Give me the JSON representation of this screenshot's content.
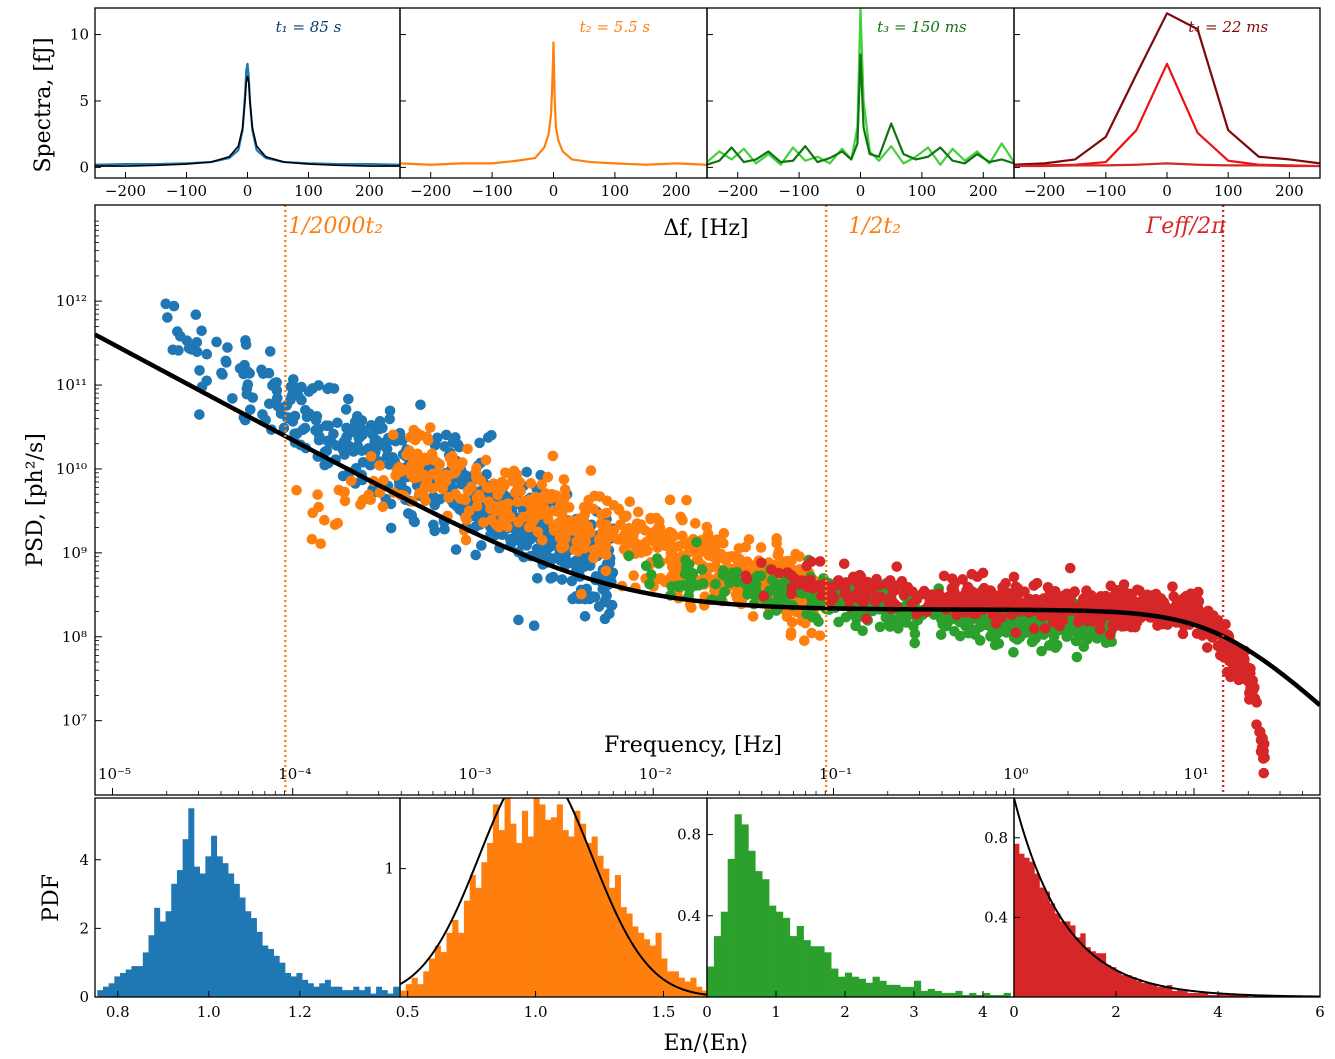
{
  "colors": {
    "blue": "#1f77b4",
    "orange": "#ff7f0e",
    "green": "#2ca02c",
    "red": "#d62728",
    "dark_blue": "#0a3a6b",
    "light_green": "#44cf3c",
    "dark_green": "#107510",
    "dark_red": "#7d0a0a",
    "bright_red": "#ee1111",
    "fit": "#000000"
  },
  "labels": {
    "spectra_ylabel": "Spectra,  [fJ]",
    "df_xlabel": "Δf,  [Hz]",
    "psd_ylabel": "PSD,  [ph²/s]",
    "freq_xlabel": "Frequency,  [Hz]",
    "pdf_ylabel": "PDF",
    "energy_xlabel": "En/⟨En⟩",
    "vline1": "1/2000t₂",
    "vline2": "1/2t₂",
    "vline3": "Γeff/2π"
  },
  "chart_data": [
    {
      "type": "line",
      "panel": "spectrum-1",
      "title": "t₁ = 85 s",
      "x": [
        -250,
        -200,
        -150,
        -100,
        -60,
        -30,
        -15,
        -8,
        -4,
        -2,
        0,
        2,
        4,
        8,
        15,
        30,
        60,
        100,
        150,
        200,
        250
      ],
      "series": [
        {
          "values": [
            0.2,
            0.25,
            0.25,
            0.3,
            0.4,
            0.7,
            1.3,
            2.8,
            5.5,
            7.3,
            7.8,
            6.8,
            5.0,
            2.8,
            1.3,
            0.7,
            0.4,
            0.3,
            0.25,
            0.25,
            0.2
          ]
        }
      ],
      "fit": [
        0.1,
        0.1,
        0.15,
        0.25,
        0.4,
        0.8,
        1.6,
        3.0,
        5.0,
        6.4,
        6.9,
        6.4,
        5.0,
        3.0,
        1.6,
        0.8,
        0.4,
        0.25,
        0.15,
        0.1,
        0.1
      ],
      "xlim": [
        -250,
        250
      ],
      "ylim": [
        -0.8,
        12
      ],
      "xticks": [
        -200,
        -100,
        0,
        100,
        200
      ],
      "yticks": [
        0,
        5,
        10
      ]
    },
    {
      "type": "line",
      "panel": "spectrum-2",
      "title": "t₂ = 5.5 s",
      "x": [
        -250,
        -200,
        -150,
        -100,
        -60,
        -30,
        -15,
        -8,
        -4,
        -2,
        0,
        2,
        4,
        8,
        15,
        30,
        60,
        100,
        150,
        200,
        250
      ],
      "series": [
        {
          "values": [
            0.3,
            0.2,
            0.3,
            0.3,
            0.5,
            0.7,
            1.5,
            2.5,
            4.0,
            6.2,
            9.4,
            5.0,
            3.0,
            2.0,
            1.2,
            0.6,
            0.4,
            0.3,
            0.2,
            0.3,
            0.2
          ]
        }
      ],
      "xlim": [
        -250,
        250
      ],
      "ylim": [
        -0.8,
        12
      ],
      "xticks": [
        -200,
        -100,
        0,
        100,
        200
      ],
      "yticks": [
        0,
        5,
        10
      ]
    },
    {
      "type": "line",
      "panel": "spectrum-3",
      "title": "t₃ = 150 ms",
      "x": [
        -250,
        -230,
        -210,
        -190,
        -170,
        -150,
        -130,
        -110,
        -90,
        -70,
        -50,
        -30,
        -15,
        -5,
        0,
        5,
        15,
        30,
        50,
        70,
        90,
        110,
        130,
        150,
        170,
        190,
        210,
        230,
        250
      ],
      "series": [
        {
          "values": [
            0.4,
            1.2,
            0.6,
            1.4,
            0.3,
            1.0,
            0.2,
            1.5,
            0.5,
            0.8,
            0.3,
            1.4,
            0.6,
            3.0,
            12.0,
            5.0,
            1.2,
            0.5,
            1.6,
            0.3,
            0.8,
            1.5,
            0.2,
            1.4,
            0.5,
            1.2,
            0.3,
            1.8,
            0.4
          ]
        },
        {
          "values": [
            0.2,
            0.5,
            1.5,
            0.4,
            0.6,
            1.2,
            0.4,
            0.5,
            1.6,
            0.4,
            0.7,
            1.2,
            0.6,
            1.8,
            8.5,
            3.0,
            1.0,
            0.8,
            3.3,
            1.0,
            0.6,
            0.8,
            1.5,
            0.5,
            0.3,
            1.0,
            0.4,
            0.6,
            0.3
          ]
        }
      ],
      "xlim": [
        -250,
        250
      ],
      "ylim": [
        -0.8,
        12
      ],
      "xticks": [
        -200,
        -100,
        0,
        100,
        200
      ],
      "yticks": [
        0,
        5,
        10
      ]
    },
    {
      "type": "line",
      "panel": "spectrum-4",
      "title": "t₄ = 22 ms",
      "x": [
        -250,
        -200,
        -150,
        -100,
        -50,
        0,
        50,
        100,
        150,
        200,
        250
      ],
      "series": [
        {
          "values": [
            0.2,
            0.3,
            0.6,
            2.3,
            7.0,
            11.6,
            10.4,
            2.8,
            0.8,
            0.6,
            0.3
          ]
        },
        {
          "values": [
            0.1,
            0.15,
            0.2,
            0.4,
            2.8,
            7.8,
            2.6,
            0.5,
            0.2,
            0.15,
            0.1
          ]
        },
        {
          "values": [
            0.1,
            0.1,
            0.15,
            0.15,
            0.2,
            0.3,
            0.2,
            0.15,
            0.15,
            0.1,
            0.1
          ]
        }
      ],
      "xlim": [
        -250,
        250
      ],
      "ylim": [
        -0.8,
        12
      ],
      "xticks": [
        -200,
        -100,
        0,
        100,
        200
      ],
      "yticks": [
        0,
        5,
        10
      ]
    },
    {
      "type": "scatter",
      "panel": "psd",
      "xscale": "log",
      "yscale": "log",
      "xlim": [
        8e-06,
        50
      ],
      "ylim": [
        1300000,
        14000000000000
      ],
      "xticks": [
        "10⁻⁵",
        "10⁻⁴",
        "10⁻³",
        "10⁻²",
        "10⁻¹",
        "10⁰",
        "10¹"
      ],
      "yticks": [
        "10⁷",
        "10⁸",
        "10⁹",
        "10¹⁰",
        "10¹¹",
        "10¹²"
      ],
      "groups": [
        {
          "color": "blue",
          "fmin": 1.5e-05,
          "fmax": 0.006,
          "slope": -1.05,
          "scatter": 0.28,
          "count": 560,
          "anchors": [
            [
              1.5e-05,
              800000000000
            ],
            [
              5e-05,
              120000000000
            ],
            [
              0.0001,
              50000000000
            ],
            [
              0.001,
              5000000000
            ],
            [
              0.006,
              500000000
            ]
          ]
        },
        {
          "color": "orange",
          "fmin": 8.8e-05,
          "fmax": 0.085,
          "slope": -0.65,
          "scatter": 0.22,
          "count": 620,
          "anchors": [
            [
              9e-05,
              2000000000
            ],
            [
              0.0005,
              10000000000
            ],
            [
              0.003,
              2800000000
            ],
            [
              0.02,
              700000000
            ],
            [
              0.085,
              300000000
            ]
          ]
        },
        {
          "color": "green",
          "fmin": 0.005,
          "fmax": 3.5,
          "slope": -0.08,
          "scatter": 0.13,
          "count": 520,
          "anchors": [
            [
              0.005,
              700000000
            ],
            [
              0.05,
              350000000
            ],
            [
              1,
              150000000
            ],
            [
              3.5,
              150000000
            ]
          ]
        },
        {
          "color": "red",
          "fmin": 0.03,
          "fmax": 25,
          "slope": 0,
          "scatter": 0.12,
          "count": 640,
          "anchors": [
            [
              0.03,
              500000000
            ],
            [
              1,
              250000000
            ],
            [
              10,
              200000000
            ],
            [
              20,
              40000000
            ],
            [
              25,
              3000000
            ]
          ]
        }
      ],
      "fit": {
        "a": 550000,
        "alpha": 1.15,
        "b": 210000000,
        "fc": 14
      }
    },
    {
      "type": "bar",
      "panel": "pdf-1",
      "bin_start": 0.755,
      "bin_width": 0.0125,
      "values": [
        0.2,
        0.3,
        0.4,
        0.6,
        0.7,
        0.8,
        0.9,
        0.9,
        1.3,
        1.8,
        2.6,
        2.2,
        2.5,
        3.3,
        3.7,
        4.6,
        5.5,
        3.8,
        3.6,
        4.1,
        4.7,
        4.1,
        3.9,
        3.6,
        3.3,
        2.9,
        2.5,
        2.3,
        1.9,
        1.5,
        1.4,
        1.2,
        1.0,
        0.7,
        0.6,
        0.7,
        0.5,
        0.4,
        0.3,
        0.4,
        0.5,
        0.3,
        0.3,
        0.2,
        0.2,
        0.3,
        0.2,
        0.3,
        0.1,
        0.3,
        0.2,
        0.1,
        0.3
      ],
      "xlim": [
        0.75,
        1.42
      ],
      "ylim": [
        0,
        5.8
      ],
      "xticks": [
        0.8,
        1.0,
        1.2
      ],
      "yticks": [
        0,
        2,
        4
      ]
    },
    {
      "type": "bar",
      "panel": "pdf-2",
      "bin_start": 0.47,
      "bin_width": 0.0227,
      "values": [
        0.05,
        0.1,
        0.15,
        0.1,
        0.2,
        0.3,
        0.4,
        0.35,
        0.5,
        0.6,
        0.5,
        0.75,
        0.95,
        0.85,
        1.05,
        1.2,
        1.5,
        1.3,
        1.55,
        1.35,
        1.2,
        1.45,
        1.25,
        1.6,
        1.5,
        1.38,
        1.4,
        1.5,
        1.3,
        1.25,
        1.45,
        1.35,
        1.2,
        1.25,
        1.1,
        1.0,
        0.85,
        0.95,
        0.7,
        0.65,
        0.55,
        0.5,
        0.45,
        0.4,
        0.5,
        0.3,
        0.2,
        0.2,
        0.15,
        0.12,
        0.15,
        0.08,
        0.05
      ],
      "fit": {
        "mu": 1.0,
        "sigma": 0.22
      },
      "xlim": [
        0.47,
        1.67
      ],
      "ylim": [
        0,
        1.55
      ],
      "xticks": [
        0.5,
        1.0,
        1.5
      ],
      "yticks": [
        1
      ]
    },
    {
      "type": "bar",
      "panel": "pdf-3",
      "bin_start": 0.0,
      "bin_width": 0.1,
      "values": [
        0.15,
        0.3,
        0.42,
        0.68,
        0.9,
        0.85,
        0.72,
        0.62,
        0.58,
        0.45,
        0.42,
        0.39,
        0.3,
        0.35,
        0.28,
        0.25,
        0.25,
        0.22,
        0.14,
        0.1,
        0.12,
        0.1,
        0.09,
        0.07,
        0.1,
        0.08,
        0.06,
        0.06,
        0.05,
        0.05,
        0.08,
        0.03,
        0.04,
        0.03,
        0.02,
        0.02,
        0.03,
        0.01,
        0.02,
        0.01,
        0.02,
        0.01,
        0.01,
        0.02
      ],
      "xlim": [
        0,
        4.45
      ],
      "ylim": [
        0,
        0.98
      ],
      "xticks": [
        0,
        1,
        2,
        3,
        4
      ],
      "yticks": [
        0.4,
        0.8
      ]
    },
    {
      "type": "bar",
      "panel": "pdf-4",
      "bin_start": 0.0,
      "bin_width": 0.1,
      "values": [
        0.77,
        0.72,
        0.7,
        0.68,
        0.62,
        0.55,
        0.53,
        0.47,
        0.42,
        0.38,
        0.38,
        0.36,
        0.3,
        0.32,
        0.25,
        0.23,
        0.22,
        0.22,
        0.16,
        0.15,
        0.13,
        0.11,
        0.11,
        0.1,
        0.08,
        0.07,
        0.07,
        0.06,
        0.05,
        0.05,
        0.06,
        0.03,
        0.04,
        0.03,
        0.02,
        0.02,
        0.02,
        0.02,
        0.01,
        0.01,
        0.02,
        0.01,
        0.01,
        0.01,
        0.01,
        0.01,
        0.0,
        0.01,
        0.0,
        0.01,
        0.0,
        0.01
      ],
      "fit": {
        "rate": 1.0
      },
      "xlim": [
        0,
        6
      ],
      "ylim": [
        0,
        1.0
      ],
      "xticks": [
        0,
        2,
        4,
        6
      ],
      "yticks": [
        0.4,
        0.8
      ]
    }
  ]
}
